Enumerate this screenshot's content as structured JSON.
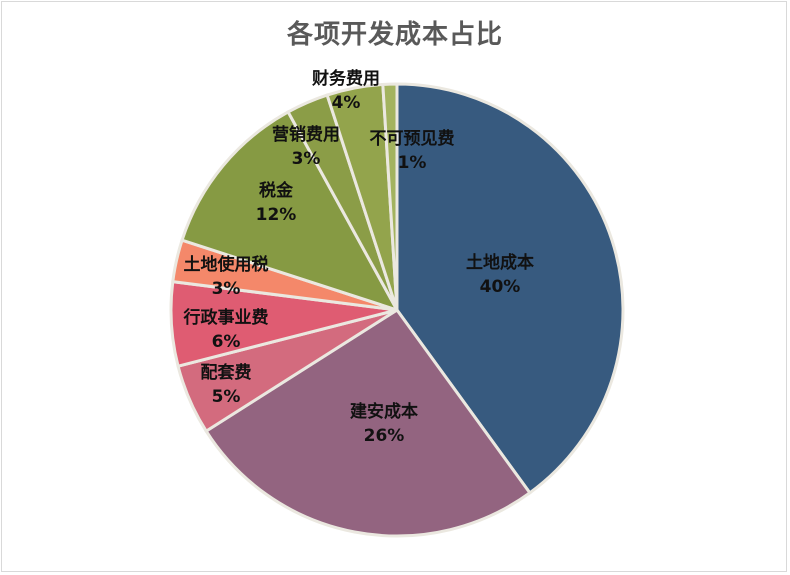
{
  "chart_data": {
    "type": "pie",
    "title": "各项开发成本占比",
    "slices": [
      {
        "label": "土地成本",
        "value": 40,
        "pct_text": "40%",
        "color": "#375a7f"
      },
      {
        "label": "建安成本",
        "value": 26,
        "pct_text": "26%",
        "color": "#936480"
      },
      {
        "label": "配套费",
        "value": 5,
        "pct_text": "5%",
        "color": "#d36b7e"
      },
      {
        "label": "行政事业费",
        "value": 6,
        "pct_text": "6%",
        "color": "#df5c72"
      },
      {
        "label": "土地使用税",
        "value": 3,
        "pct_text": "3%",
        "color": "#f4886a"
      },
      {
        "label": "税金",
        "value": 12,
        "pct_text": "12%",
        "color": "#869a43"
      },
      {
        "label": "营销费用",
        "value": 3,
        "pct_text": "3%",
        "color": "#8b9d47"
      },
      {
        "label": "财务费用",
        "value": 4,
        "pct_text": "4%",
        "color": "#93a44c"
      },
      {
        "label": "不可预见费",
        "value": 1,
        "pct_text": "1%",
        "color": "#a3b35f"
      }
    ]
  }
}
